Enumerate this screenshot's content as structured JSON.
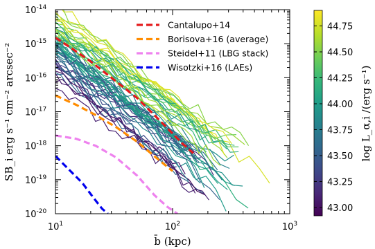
{
  "chart_data": {
    "type": "line",
    "xlabel": "b̄ (kpc)",
    "ylabel": "SB_i erg s⁻¹ cm⁻² arcsec⁻²",
    "xscale": "log",
    "yscale": "log",
    "xlim": [
      10,
      1000
    ],
    "ylim": [
      1e-20,
      1e-14
    ],
    "x_tick_labels": [
      {
        "value": 10,
        "mantissa": "10",
        "exponent": "1"
      },
      {
        "value": 100,
        "mantissa": "10",
        "exponent": "2"
      },
      {
        "value": 1000,
        "mantissa": "10",
        "exponent": "3"
      }
    ],
    "y_tick_labels": [
      {
        "value": 1e-20,
        "mantissa": "10",
        "exponent": "-20"
      },
      {
        "value": 1e-19,
        "mantissa": "10",
        "exponent": "-19"
      },
      {
        "value": 1e-18,
        "mantissa": "10",
        "exponent": "-18"
      },
      {
        "value": 1e-17,
        "mantissa": "10",
        "exponent": "-17"
      },
      {
        "value": 1e-16,
        "mantissa": "10",
        "exponent": "-16"
      },
      {
        "value": 1e-15,
        "mantissa": "10",
        "exponent": "-15"
      },
      {
        "value": 1e-14,
        "mantissa": "10",
        "exponent": "-14"
      }
    ],
    "legend_position": "top-right",
    "reference_profiles": [
      {
        "name": "Cantalupo+14",
        "color": "#e41a1c",
        "style": "dashed",
        "x": [
          10,
          14,
          20,
          30,
          50,
          80,
          120,
          150
        ],
        "y": [
          1.5e-15,
          7e-16,
          3e-16,
          1e-16,
          2.5e-17,
          5e-18,
          1.2e-18,
          6e-19
        ]
      },
      {
        "name": "Borisova+16 (average)",
        "color": "#ff8c00",
        "style": "dashed",
        "x": [
          10,
          15,
          22,
          33,
          50,
          75,
          100
        ],
        "y": [
          3e-17,
          1.6e-17,
          8e-18,
          3.5e-18,
          1.3e-18,
          4e-19,
          1.8e-19
        ]
      },
      {
        "name": "Steidel+11 (LBG stack)",
        "color": "#ee82ee",
        "style": "dashed",
        "x": [
          10,
          15,
          22,
          33,
          50,
          70,
          90,
          110
        ],
        "y": [
          2e-18,
          1.6e-18,
          1e-18,
          4.5e-19,
          1.3e-19,
          3.5e-20,
          1.6e-20,
          1e-20
        ]
      },
      {
        "name": "Wisotzki+16 (LAEs)",
        "color": "#0000ee",
        "style": "dashed",
        "x": [
          10,
          13,
          17,
          21,
          25,
          28
        ],
        "y": [
          5e-19,
          2e-19,
          8e-20,
          3e-20,
          1.4e-20,
          1e-20
        ]
      }
    ],
    "colorbar": {
      "label": "log L_α,i /(erg s⁻¹)",
      "colormap": "viridis",
      "range": [
        42.92,
        44.9
      ],
      "tick_labels": [
        "43.00",
        "43.25",
        "43.50",
        "43.75",
        "44.00",
        "44.25",
        "44.50",
        "44.75"
      ],
      "tick_values": [
        43.0,
        43.25,
        43.5,
        43.75,
        44.0,
        44.25,
        44.5,
        44.75
      ]
    },
    "series_description_free": true,
    "individual_profiles": {
      "count": 60,
      "x_start": 10,
      "x_end_range": [
        100,
        900
      ],
      "y_start_range": [
        2e-17,
        1e-14
      ],
      "luminosity_range": [
        42.95,
        44.88
      ]
    }
  },
  "colors": {
    "viridis": [
      "#440154",
      "#482878",
      "#3e4989",
      "#31688e",
      "#26828e",
      "#1f9e89",
      "#35b779",
      "#6ece58",
      "#b5de2b",
      "#fde725"
    ]
  }
}
